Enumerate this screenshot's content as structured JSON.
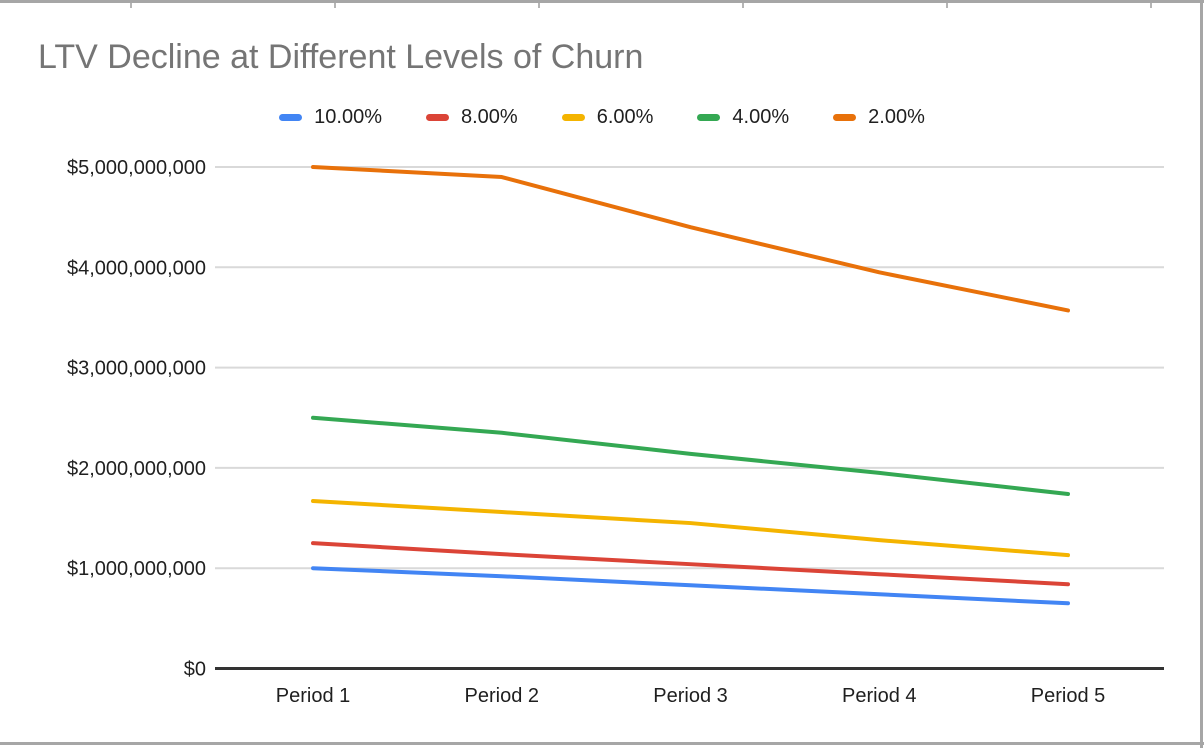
{
  "frame": {
    "border_color": "#a6a6a6",
    "column_tick_xs": [
      130,
      334,
      538,
      742,
      946,
      1150
    ]
  },
  "chart_data": {
    "type": "line",
    "title": "LTV Decline at Different Levels of Churn",
    "xlabel": "",
    "ylabel": "",
    "categories": [
      "Period 1",
      "Period 2",
      "Period 3",
      "Period 4",
      "Period 5"
    ],
    "series": [
      {
        "name": "10.00%",
        "color": "#4285F4",
        "values": [
          1000000000,
          920000000,
          830000000,
          740000000,
          650000000
        ]
      },
      {
        "name": "8.00%",
        "color": "#DB4437",
        "values": [
          1250000000,
          1140000000,
          1040000000,
          940000000,
          840000000
        ]
      },
      {
        "name": "6.00%",
        "color": "#F4B400",
        "values": [
          1670000000,
          1560000000,
          1450000000,
          1280000000,
          1130000000
        ]
      },
      {
        "name": "4.00%",
        "color": "#34A853",
        "values": [
          2500000000,
          2350000000,
          2140000000,
          1950000000,
          1740000000
        ]
      },
      {
        "name": "2.00%",
        "color": "#E8710A",
        "values": [
          5000000000,
          4900000000,
          4400000000,
          3950000000,
          3570000000
        ]
      }
    ],
    "y_axis": {
      "labels": [
        "$0",
        "$1,000,000,000",
        "$2,000,000,000",
        "$3,000,000,000",
        "$4,000,000,000",
        "$5,000,000,000"
      ],
      "values": [
        0,
        1000000000,
        2000000000,
        3000000000,
        4000000000,
        5000000000
      ]
    },
    "ylim": [
      0,
      5000000000
    ],
    "grid": true,
    "legend_position": "top",
    "colors": {
      "title_text": "#757575",
      "axis_text": "#1f1f1f",
      "gridline": "#d9d9d9",
      "axis_line": "#333333"
    }
  }
}
